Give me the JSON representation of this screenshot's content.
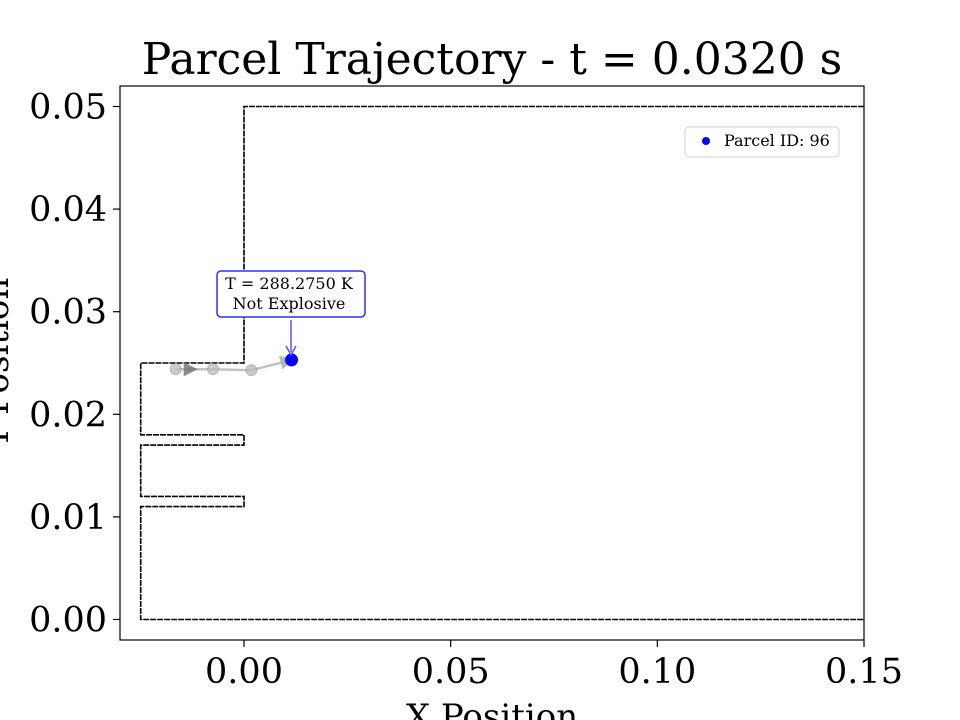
{
  "chart_data": {
    "type": "line",
    "title": "Parcel Trajectory - t = 0.0320 s",
    "xlabel": "X Position",
    "ylabel": "Y Position",
    "xlim": [
      -0.03,
      0.15
    ],
    "ylim": [
      -0.002,
      0.052
    ],
    "x_ticks": [
      0.0,
      0.05,
      0.1,
      0.15
    ],
    "x_tick_labels": [
      "0.00",
      "0.05",
      "0.10",
      "0.15"
    ],
    "y_ticks": [
      0.0,
      0.01,
      0.02,
      0.03,
      0.04,
      0.05
    ],
    "y_tick_labels": [
      "0.00",
      "0.01",
      "0.02",
      "0.03",
      "0.04",
      "0.05"
    ],
    "grid": false,
    "legend": {
      "position": "top-right",
      "entries": [
        {
          "label": "Parcel ID: 96",
          "color": "#0000ff"
        }
      ]
    },
    "geometry_outline": [
      [
        0.15,
        0.05
      ],
      [
        0.0,
        0.05
      ],
      [
        0.0,
        0.025
      ],
      [
        -0.025,
        0.025
      ],
      [
        -0.025,
        0.018
      ],
      [
        0.0,
        0.018
      ],
      [
        0.0,
        0.017
      ],
      [
        -0.025,
        0.017
      ],
      [
        -0.025,
        0.012
      ],
      [
        0.0,
        0.012
      ],
      [
        0.0,
        0.011
      ],
      [
        -0.025,
        0.011
      ],
      [
        -0.025,
        0.0
      ],
      [
        0.15,
        0.0
      ]
    ],
    "trajectory": {
      "x": [
        -0.0165,
        -0.0075,
        0.0018,
        0.0115
      ],
      "y": [
        0.0244,
        0.0244,
        0.0243,
        0.0253
      ],
      "history_color": "#bbbbbb"
    },
    "current_parcel": {
      "id": 96,
      "x": 0.0115,
      "y": 0.0253,
      "color": "#0000ff"
    },
    "annotation": {
      "lines": [
        "T = 288.2750 K",
        "Not Explosive"
      ],
      "border_color": "#2f2fff"
    }
  }
}
